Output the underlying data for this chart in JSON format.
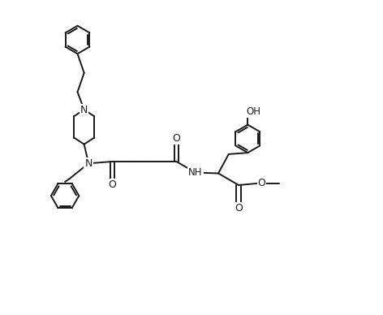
{
  "background_color": "#ffffff",
  "line_color": "#1a1a1a",
  "line_width": 1.4,
  "font_size": 8.5,
  "fig_width": 4.72,
  "fig_height": 3.88,
  "dpi": 100,
  "xlim": [
    0,
    10
  ],
  "ylim": [
    0,
    8.5
  ]
}
